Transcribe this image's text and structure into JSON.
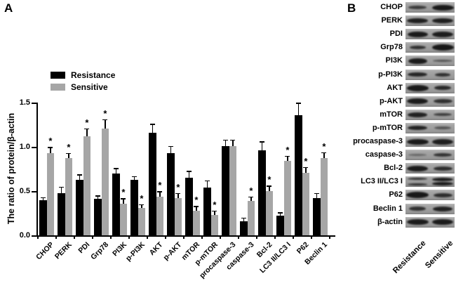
{
  "figure": {
    "panel_a_label": "A",
    "panel_b_label": "B"
  },
  "chart_data": {
    "type": "bar",
    "title": "",
    "xlabel": "",
    "ylabel": "The ratio of protein/β-actin",
    "ylim": [
      0,
      1.5
    ],
    "ytick_values": [
      0,
      0.5,
      1.0,
      1.5
    ],
    "ytick_labels": [
      "0.0",
      "0.5",
      "1.0",
      "1.5"
    ],
    "grid": false,
    "legend_position": "upper-left-inside",
    "significance_marker": "*",
    "categories": [
      "CHOP",
      "PERK",
      "PDI",
      "Grp78",
      "PI3K",
      "p-PI3K",
      "AKT",
      "p-AKT",
      "mTOR",
      "p-mTOR",
      "procaspase-3",
      "caspase-3",
      "Bcl-2",
      "LC3 II/LC3 I",
      "P62",
      "Beclin 1"
    ],
    "series": [
      {
        "name": "Resistance",
        "color": "#000000",
        "values": [
          0.4,
          0.48,
          0.63,
          0.41,
          0.7,
          0.63,
          1.16,
          0.93,
          0.65,
          0.54,
          1.01,
          0.16,
          0.96,
          0.22,
          1.36,
          0.42
        ],
        "errors": [
          0.03,
          0.07,
          0.06,
          0.04,
          0.06,
          0.04,
          0.1,
          0.08,
          0.08,
          0.08,
          0.07,
          0.04,
          0.1,
          0.04,
          0.14,
          0.06
        ],
        "significant": [
          false,
          false,
          false,
          false,
          false,
          false,
          false,
          false,
          false,
          false,
          false,
          false,
          false,
          false,
          false,
          false
        ]
      },
      {
        "name": "Sensitive",
        "color": "#a6a6a6",
        "values": [
          0.93,
          0.87,
          1.12,
          1.21,
          0.36,
          0.31,
          0.44,
          0.42,
          0.28,
          0.23,
          1.01,
          0.39,
          0.5,
          0.84,
          0.71,
          0.87
        ],
        "errors": [
          0.07,
          0.06,
          0.09,
          0.1,
          0.06,
          0.04,
          0.06,
          0.06,
          0.05,
          0.05,
          0.07,
          0.05,
          0.06,
          0.06,
          0.06,
          0.07
        ],
        "significant": [
          true,
          true,
          true,
          true,
          true,
          true,
          true,
          true,
          true,
          true,
          false,
          true,
          true,
          true,
          true,
          true
        ]
      }
    ]
  },
  "blot_panel": {
    "lane_labels": [
      "Resistance",
      "Sensitive"
    ],
    "rows": [
      {
        "label": "CHOP",
        "lanes": [
          {
            "opacity": 0.72,
            "width": 26,
            "height": 5,
            "double": false
          },
          {
            "opacity": 0.95,
            "width": 31,
            "height": 8,
            "double": false
          }
        ]
      },
      {
        "label": "PERK",
        "lanes": [
          {
            "opacity": 0.92,
            "width": 30,
            "height": 7,
            "double": false
          },
          {
            "opacity": 0.92,
            "width": 30,
            "height": 7,
            "double": false
          }
        ]
      },
      {
        "label": "PDI",
        "lanes": [
          {
            "opacity": 0.95,
            "width": 29,
            "height": 8,
            "double": false
          },
          {
            "opacity": 0.93,
            "width": 30,
            "height": 8,
            "double": false
          }
        ]
      },
      {
        "label": "Grp78",
        "lanes": [
          {
            "opacity": 0.8,
            "width": 23,
            "height": 5,
            "double": false
          },
          {
            "opacity": 0.96,
            "width": 31,
            "height": 9,
            "double": false
          }
        ]
      },
      {
        "label": "PI3K",
        "lanes": [
          {
            "opacity": 0.95,
            "width": 27,
            "height": 8,
            "double": false
          },
          {
            "opacity": 0.55,
            "width": 28,
            "height": 3,
            "double": false
          }
        ]
      },
      {
        "label": "p-PI3K",
        "lanes": [
          {
            "opacity": 0.88,
            "width": 28,
            "height": 6,
            "double": false
          },
          {
            "opacity": 0.8,
            "width": 22,
            "height": 5,
            "double": false
          }
        ]
      },
      {
        "label": "AKT",
        "lanes": [
          {
            "opacity": 0.96,
            "width": 31,
            "height": 9,
            "double": false
          },
          {
            "opacity": 0.85,
            "width": 24,
            "height": 6,
            "double": false
          }
        ]
      },
      {
        "label": "p-AKT",
        "lanes": [
          {
            "opacity": 0.95,
            "width": 30,
            "height": 8,
            "double": false
          },
          {
            "opacity": 0.8,
            "width": 27,
            "height": 6,
            "double": false
          }
        ]
      },
      {
        "label": "mTOR",
        "lanes": [
          {
            "opacity": 0.9,
            "width": 28,
            "height": 7,
            "double": false
          },
          {
            "opacity": 0.7,
            "width": 26,
            "height": 4,
            "double": false
          }
        ]
      },
      {
        "label": "p-mTOR",
        "lanes": [
          {
            "opacity": 0.9,
            "width": 28,
            "height": 6,
            "double": false
          },
          {
            "opacity": 0.55,
            "width": 24,
            "height": 4,
            "double": false
          }
        ]
      },
      {
        "label": "procaspase-3",
        "lanes": [
          {
            "opacity": 0.95,
            "width": 31,
            "height": 8,
            "double": false
          },
          {
            "opacity": 0.93,
            "width": 30,
            "height": 8,
            "double": false
          }
        ]
      },
      {
        "label": "caspase-3",
        "lanes": [
          {
            "opacity": 0.42,
            "width": 26,
            "height": 3,
            "double": false
          },
          {
            "opacity": 0.78,
            "width": 26,
            "height": 5,
            "double": false
          }
        ]
      },
      {
        "label": "Bcl-2",
        "lanes": [
          {
            "opacity": 0.95,
            "width": 30,
            "height": 8,
            "double": false
          },
          {
            "opacity": 0.82,
            "width": 27,
            "height": 6,
            "double": false
          }
        ]
      },
      {
        "label": "LC3 II/LC3 I",
        "lanes": [
          {
            "opacity": 0.82,
            "width": 28,
            "height": 3,
            "double": true
          },
          {
            "opacity": 0.95,
            "width": 30,
            "height": 5,
            "double": true
          }
        ]
      },
      {
        "label": "P62",
        "lanes": [
          {
            "opacity": 0.97,
            "width": 32,
            "height": 9,
            "double": false
          },
          {
            "opacity": 0.82,
            "width": 27,
            "height": 6,
            "double": false
          }
        ]
      },
      {
        "label": "Beclin 1",
        "lanes": [
          {
            "opacity": 0.8,
            "width": 24,
            "height": 6,
            "double": false
          },
          {
            "opacity": 0.9,
            "width": 28,
            "height": 7,
            "double": false
          }
        ]
      },
      {
        "label": "β-actin",
        "lanes": [
          {
            "opacity": 0.95,
            "width": 31,
            "height": 8,
            "double": false
          },
          {
            "opacity": 0.95,
            "width": 30,
            "height": 8,
            "double": false
          }
        ]
      }
    ]
  }
}
